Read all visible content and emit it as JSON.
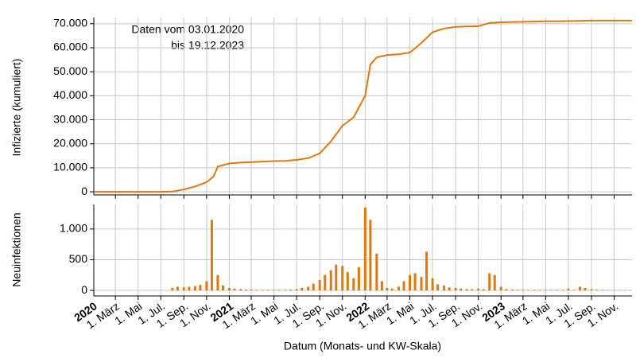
{
  "chart_data": [
    {
      "type": "line",
      "ylabel": "Infizierte (kumuliert)",
      "annotation": [
        "Daten vom 03.01.2020",
        "bis 19.12.2023"
      ],
      "color": "#e07810",
      "xlim": [
        "2020-01-03",
        "2023-12-19"
      ],
      "ylim": [
        -1300,
        72600
      ],
      "yticks": [
        0,
        {
          "value": 10000,
          "label": "10.000"
        },
        {
          "value": 20000,
          "label": "20.000"
        },
        {
          "value": 30000,
          "label": "30.000"
        },
        {
          "value": 40000,
          "label": "40.000"
        },
        {
          "value": 50000,
          "label": "50.000"
        },
        {
          "value": 60000,
          "label": "60.000"
        },
        {
          "value": 70000,
          "label": "70.000"
        }
      ],
      "x": [
        "2020-01-03",
        "2020-02-01",
        "2020-03-01",
        "2020-04-01",
        "2020-05-01",
        "2020-06-01",
        "2020-07-01",
        "2020-08-01",
        "2020-09-01",
        "2020-10-01",
        "2020-11-01",
        "2020-11-20",
        "2020-12-01",
        "2021-01-01",
        "2021-02-01",
        "2021-03-01",
        "2021-04-01",
        "2021-05-01",
        "2021-06-01",
        "2021-07-01",
        "2021-08-01",
        "2021-09-01",
        "2021-10-01",
        "2021-11-01",
        "2021-12-01",
        "2022-01-01",
        "2022-01-15",
        "2022-02-01",
        "2022-03-01",
        "2022-04-01",
        "2022-05-01",
        "2022-06-01",
        "2022-07-01",
        "2022-08-01",
        "2022-09-01",
        "2022-10-01",
        "2022-11-01",
        "2022-12-01",
        "2023-01-01",
        "2023-02-01",
        "2023-03-01",
        "2023-04-01",
        "2023-05-01",
        "2023-06-01",
        "2023-07-01",
        "2023-08-01",
        "2023-09-01",
        "2023-10-01",
        "2023-11-01",
        "2023-12-19"
      ],
      "values": [
        0,
        0,
        0,
        0,
        0,
        0,
        0,
        100,
        1000,
        2200,
        4000,
        6500,
        10500,
        11800,
        12200,
        12400,
        12600,
        12800,
        12900,
        13300,
        14000,
        16000,
        21000,
        27500,
        31000,
        40000,
        53000,
        56000,
        57000,
        57300,
        58000,
        62000,
        66500,
        68000,
        68700,
        68900,
        69000,
        70300,
        70600,
        70700,
        70800,
        70900,
        71000,
        71000,
        71100,
        71200,
        71300,
        71300,
        71300,
        71300
      ]
    },
    {
      "type": "bar",
      "ylabel": "Neuinfektionen",
      "xlabel": "Datum (Monats- und KW-Skala)",
      "color": "#e07810",
      "xlim": [
        "2020-01-03",
        "2023-12-19"
      ],
      "ylim": [
        -90,
        1400
      ],
      "yticks": [
        0,
        500,
        {
          "value": 1000,
          "label": "1.000"
        }
      ],
      "xticks": [
        {
          "value": "2020-01-01",
          "label": "2020"
        },
        {
          "value": "2020-03-01",
          "label": "1. März"
        },
        {
          "value": "2020-05-01",
          "label": "1. Mai"
        },
        {
          "value": "2020-07-01",
          "label": "1. Jul."
        },
        {
          "value": "2020-09-01",
          "label": "1. Sep."
        },
        {
          "value": "2020-11-01",
          "label": "1. Nov."
        },
        {
          "value": "2021-01-01",
          "label": "2021"
        },
        {
          "value": "2021-03-01",
          "label": "1. März"
        },
        {
          "value": "2021-05-01",
          "label": "1. Mai"
        },
        {
          "value": "2021-07-01",
          "label": "1. Jul."
        },
        {
          "value": "2021-09-01",
          "label": "1. Sep."
        },
        {
          "value": "2021-11-01",
          "label": "1. Nov."
        },
        {
          "value": "2022-01-01",
          "label": "2022"
        },
        {
          "value": "2022-03-01",
          "label": "1. März"
        },
        {
          "value": "2022-05-01",
          "label": "1. Mai"
        },
        {
          "value": "2022-07-01",
          "label": "1. Jul."
        },
        {
          "value": "2022-09-01",
          "label": "1. Sep."
        },
        {
          "value": "2022-11-01",
          "label": "1. Nov."
        },
        {
          "value": "2023-01-01",
          "label": "2023"
        },
        {
          "value": "2023-03-01",
          "label": "1. März"
        },
        {
          "value": "2023-05-01",
          "label": "1. Mai"
        },
        {
          "value": "2023-07-01",
          "label": "1. Jul."
        },
        {
          "value": "2023-09-01",
          "label": "1. Sep."
        },
        {
          "value": "2023-11-01",
          "label": "1. Nov."
        }
      ],
      "x": [
        "2020-01-03",
        "2020-01-15",
        "2020-02-01",
        "2020-02-15",
        "2020-03-01",
        "2020-03-15",
        "2020-04-01",
        "2020-04-15",
        "2020-05-01",
        "2020-05-15",
        "2020-06-01",
        "2020-06-15",
        "2020-07-01",
        "2020-07-15",
        "2020-08-01",
        "2020-08-15",
        "2020-09-01",
        "2020-09-15",
        "2020-10-01",
        "2020-10-15",
        "2020-11-01",
        "2020-11-15",
        "2020-12-01",
        "2020-12-15",
        "2021-01-01",
        "2021-01-15",
        "2021-02-01",
        "2021-02-15",
        "2021-03-01",
        "2021-03-15",
        "2021-04-01",
        "2021-04-15",
        "2021-05-01",
        "2021-05-15",
        "2021-06-01",
        "2021-06-15",
        "2021-07-01",
        "2021-07-15",
        "2021-08-01",
        "2021-08-15",
        "2021-09-01",
        "2021-09-15",
        "2021-10-01",
        "2021-10-15",
        "2021-11-01",
        "2021-11-15",
        "2021-12-01",
        "2021-12-15",
        "2022-01-01",
        "2022-01-15",
        "2022-02-01",
        "2022-02-15",
        "2022-03-01",
        "2022-03-15",
        "2022-04-01",
        "2022-04-15",
        "2022-05-01",
        "2022-05-15",
        "2022-06-01",
        "2022-06-15",
        "2022-07-01",
        "2022-07-15",
        "2022-08-01",
        "2022-08-15",
        "2022-09-01",
        "2022-09-15",
        "2022-10-01",
        "2022-10-15",
        "2022-11-01",
        "2022-11-15",
        "2022-12-01",
        "2022-12-15",
        "2023-01-01",
        "2023-01-15",
        "2023-02-01",
        "2023-02-15",
        "2023-03-01",
        "2023-03-15",
        "2023-04-01",
        "2023-04-15",
        "2023-05-01",
        "2023-05-15",
        "2023-06-01",
        "2023-06-15",
        "2023-07-01",
        "2023-07-15",
        "2023-08-01",
        "2023-08-15",
        "2023-09-01",
        "2023-09-15",
        "2023-10-01",
        "2023-10-15",
        "2023-11-01",
        "2023-11-15",
        "2023-12-01",
        "2023-12-15"
      ],
      "values": [
        0,
        0,
        0,
        0,
        0,
        0,
        0,
        0,
        0,
        0,
        0,
        0,
        0,
        0,
        40,
        60,
        50,
        60,
        70,
        90,
        150,
        1150,
        250,
        80,
        40,
        30,
        20,
        15,
        15,
        10,
        10,
        10,
        10,
        10,
        10,
        15,
        20,
        40,
        60,
        110,
        170,
        250,
        330,
        420,
        400,
        300,
        200,
        380,
        1350,
        1150,
        600,
        150,
        40,
        30,
        60,
        150,
        250,
        280,
        220,
        630,
        200,
        100,
        80,
        50,
        40,
        30,
        20,
        20,
        30,
        20,
        280,
        250,
        60,
        20,
        15,
        10,
        10,
        10,
        10,
        10,
        10,
        10,
        10,
        10,
        30,
        10,
        60,
        40,
        20,
        10,
        10,
        5,
        5,
        5,
        5,
        5
      ]
    }
  ]
}
